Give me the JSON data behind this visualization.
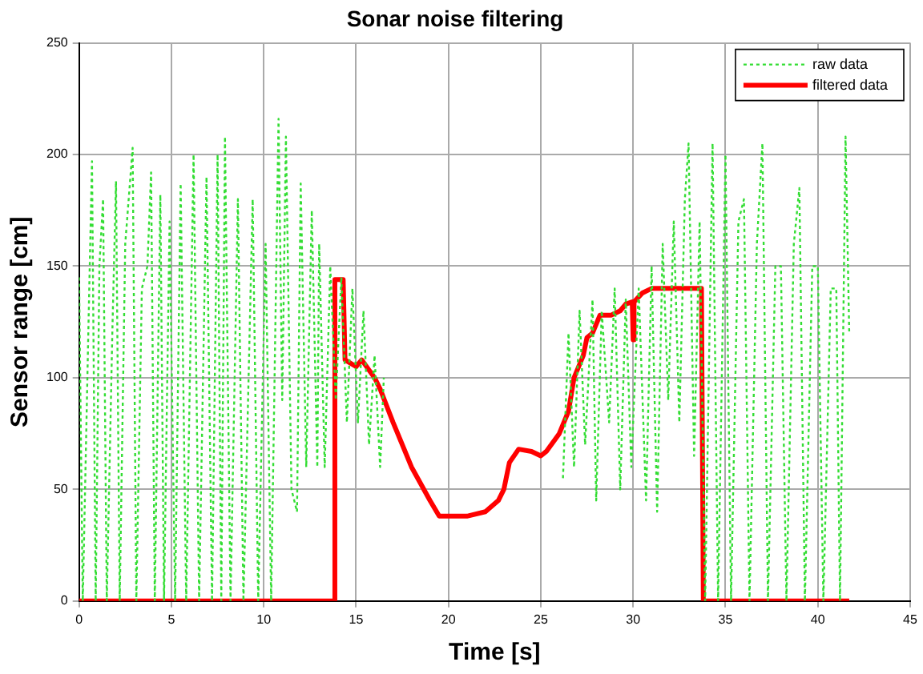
{
  "chart_data": {
    "type": "line",
    "title": "Sonar noise filtering",
    "xlabel": "Time [s]",
    "ylabel": "Sensor range [cm]",
    "xlim": [
      0,
      45
    ],
    "xticks": [
      0,
      5,
      10,
      15,
      20,
      25,
      30,
      35,
      40,
      45
    ],
    "ylim": [
      0,
      250
    ],
    "yticks": [
      0,
      50,
      100,
      150,
      200,
      250
    ],
    "grid": true,
    "legend": "top right",
    "marker": "none",
    "series": [
      {
        "name": "raw data",
        "color": "#33dd33",
        "line_style": "dotted",
        "x": [
          0,
          0.2,
          0.5,
          0.7,
          0.9,
          1.1,
          1.3,
          1.5,
          1.8,
          2.0,
          2.2,
          2.5,
          2.9,
          3.1,
          3.4,
          3.7,
          3.9,
          4.1,
          4.4,
          4.6,
          4.9,
          5.2,
          5.5,
          5.8,
          6.2,
          6.5,
          6.9,
          7.2,
          7.5,
          7.7,
          7.9,
          8.2,
          8.6,
          8.9,
          9.4,
          9.7,
          10.1,
          10.4,
          10.8,
          11.0,
          11.2,
          11.5,
          11.8,
          12.0,
          12.3,
          12.6,
          12.9,
          13.0,
          13.3,
          13.6,
          13.9,
          14.2,
          14.5,
          14.8,
          15.1,
          15.4,
          15.7,
          16.0,
          16.3,
          16.5,
          21,
          26.2,
          26.5,
          26.8,
          27.1,
          27.4,
          27.8,
          28.0,
          28.3,
          28.7,
          29.0,
          29.3,
          29.6,
          29.9,
          30.3,
          30.7,
          31.0,
          31.3,
          31.6,
          31.9,
          32.2,
          32.5,
          32.8,
          33.0,
          33.3,
          33.6,
          33.9,
          34.3,
          34.6,
          35.0,
          35.3,
          35.7,
          36.0,
          36.3,
          36.7,
          37.0,
          37.3,
          37.7,
          38.0,
          38.3,
          38.7,
          39.0,
          39.3,
          39.7,
          40.0,
          40.3,
          40.7,
          41.0,
          41.2,
          41.5,
          41.7
        ],
        "values": [
          145,
          0,
          120,
          197,
          0,
          150,
          180,
          0,
          120,
          188,
          0,
          160,
          203,
          0,
          140,
          150,
          192,
          0,
          182,
          0,
          170,
          0,
          187,
          0,
          200,
          0,
          190,
          0,
          200,
          0,
          208,
          0,
          180,
          0,
          180,
          0,
          160,
          0,
          216,
          90,
          208,
          50,
          40,
          187,
          60,
          175,
          60,
          160,
          60,
          150,
          90,
          145,
          80,
          140,
          80,
          130,
          70,
          110,
          60,
          100,
          null,
          55,
          120,
          60,
          130,
          70,
          135,
          45,
          130,
          80,
          140,
          50,
          135,
          60,
          140,
          45,
          150,
          40,
          160,
          90,
          170,
          80,
          180,
          205,
          65,
          170,
          0,
          205,
          0,
          200,
          0,
          170,
          180,
          0,
          160,
          205,
          0,
          150,
          150,
          0,
          160,
          185,
          0,
          150,
          150,
          0,
          140,
          140,
          0,
          208,
          120
        ]
      },
      {
        "name": "filtered data",
        "color": "#ff0000",
        "line_style": "solid",
        "x": [
          0,
          13.8,
          13.85,
          14.3,
          14.4,
          15,
          15.3,
          16,
          16.3,
          17,
          18,
          19,
          19.5,
          21,
          22,
          22.7,
          23,
          23.3,
          23.8,
          24.5,
          25,
          25.3,
          26,
          26.5,
          26.8,
          27.3,
          27.5,
          27.8,
          28.2,
          28.8,
          29.3,
          29.6,
          29.95,
          30,
          30.05,
          30.5,
          31,
          33.7,
          33.8,
          41.7
        ],
        "values": [
          0,
          0,
          144,
          144,
          108,
          105,
          108,
          100,
          95,
          80,
          60,
          45,
          38,
          38,
          40,
          45,
          50,
          62,
          68,
          67,
          65,
          67,
          75,
          85,
          100,
          110,
          118,
          120,
          128,
          128,
          130,
          133,
          134,
          117,
          134,
          138,
          140,
          140,
          0,
          0
        ]
      }
    ]
  }
}
